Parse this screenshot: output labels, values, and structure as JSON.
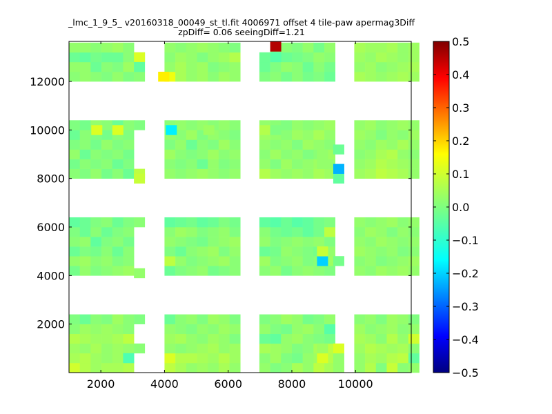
{
  "chart_data": {
    "type": "heatmap",
    "title": "_lmc_1_9_5_ v20160318_00049_st_tl.fit 4006971 offset 4 tile-paw apermag3Diff",
    "subtitle": "zpDiff= 0.06 seeingDiff=1.21",
    "xlabel": "",
    "ylabel": "",
    "xlim": [
      1000,
      11750
    ],
    "ylim": [
      0,
      13650
    ],
    "x_ticks": [
      2000,
      4000,
      6000,
      8000,
      10000
    ],
    "y_ticks": [
      2000,
      4000,
      6000,
      8000,
      10000,
      12000
    ],
    "x_tick_labels": [
      "2000",
      "4000",
      "6000",
      "8000",
      "10000"
    ],
    "y_tick_labels": [
      "2000",
      "4000",
      "6000",
      "8000",
      "10000",
      "12000"
    ],
    "colorbar": {
      "min": -0.5,
      "max": 0.5,
      "ticks": [
        0.5,
        0.4,
        0.3,
        0.2,
        0.1,
        0.0,
        -0.1,
        -0.2,
        -0.3,
        -0.4,
        -0.5
      ],
      "tick_labels": [
        "0.5",
        "0.4",
        "0.3",
        "0.2",
        "0.1",
        "0.0",
        "−0.1",
        "−0.2",
        "−0.3",
        "−0.4",
        "−0.5"
      ],
      "colormap": "jet"
    },
    "cell_size": [
      340,
      400
    ],
    "column_blocks": [
      {
        "x0": 1000,
        "ncols": 7
      },
      {
        "x0": 4000,
        "ncols": 7
      },
      {
        "x0": 6980,
        "ncols": 7
      },
      {
        "x0": 9960,
        "ncols": 6
      }
    ],
    "row_blocks": [
      {
        "y0": 0,
        "nrows": 6
      },
      {
        "y0": 4000,
        "nrows": 6
      },
      {
        "y0": 8000,
        "nrows": 6
      },
      {
        "y0": 12000,
        "nrows": 4
      }
    ],
    "block_values": [
      [
        [
          0.08,
          0.05,
          0.03,
          0.04,
          0.04,
          0.05,
          -0.03
        ],
        [
          0.04,
          0.05,
          0.03,
          0.02,
          0.03,
          0.0,
          0.0
        ],
        [
          0.03,
          0.02,
          0.04,
          0.02,
          0.03,
          0.02,
          0.01
        ],
        [
          0.05,
          0.04,
          0.03,
          0.03,
          0.04,
          0.06,
          0.05
        ],
        [
          0.01,
          0.03,
          0.02,
          0.03,
          0.02,
          0.01,
          -0.02
        ],
        [
          0.0,
          -0.02,
          0.01,
          0.0,
          0.03,
          0.01,
          0.0
        ]
      ],
      [
        [
          0.06,
          0.04,
          0.02,
          0.03,
          0.02,
          0.04,
          0.02
        ],
        [
          0.09,
          0.05,
          0.05,
          0.04,
          0.03,
          0.05,
          0.03
        ],
        [
          0.02,
          0.01,
          0.02,
          0.03,
          0.04,
          0.02,
          0.03
        ],
        [
          0.03,
          0.04,
          0.02,
          0.01,
          0.03,
          0.02,
          0.0
        ],
        [
          0.02,
          0.01,
          0.0,
          0.02,
          0.01,
          0.03,
          0.02
        ],
        [
          -0.02,
          0.01,
          0.02,
          0.0,
          0.03,
          0.02,
          0.0
        ]
      ],
      [
        [
          0.02,
          0.0,
          0.01,
          0.04,
          0.02,
          0.06,
          0.04
        ],
        [
          0.01,
          0.03,
          0.0,
          -0.01,
          0.02,
          0.03,
          0.05
        ],
        [
          0.04,
          0.03,
          0.02,
          0.0,
          0.01,
          0.04,
          0.06
        ],
        [
          -0.02,
          -0.03,
          0.02,
          0.03,
          0.01,
          0.0,
          -0.01
        ],
        [
          0.02,
          0.0,
          -0.01,
          0.02,
          0.03,
          0.01,
          -0.04
        ],
        [
          0.0,
          0.01,
          0.03,
          0.02,
          -0.01,
          0.0,
          0.02
        ]
      ],
      [
        [
          0.02,
          0.05,
          0.0,
          0.07,
          0.01,
          0.02
        ],
        [
          0.02,
          0.04,
          0.03,
          0.05,
          0.06,
          -0.03
        ],
        [
          0.03,
          0.05,
          0.04,
          0.03,
          0.04,
          0.01
        ],
        [
          0.04,
          0.03,
          0.01,
          0.05,
          0.02,
          0.08
        ],
        [
          0.03,
          0.01,
          0.02,
          0.03,
          0.01,
          0.02
        ],
        [
          0.01,
          0.02,
          0.0,
          0.03,
          0.02,
          0.0
        ]
      ],
      [
        [
          -0.01,
          0.02,
          0.0,
          0.01,
          0.02,
          0.03,
          -0.03
        ],
        [
          0.02,
          0.03,
          0.01,
          0.02,
          0.0,
          0.01,
          0.0
        ],
        [
          -0.02,
          0.0,
          -0.01,
          0.01,
          -0.02,
          0.01,
          0.02
        ],
        [
          0.01,
          0.02,
          -0.03,
          0.0,
          0.01,
          -0.01,
          -0.02
        ],
        [
          0.0,
          -0.02,
          0.01,
          -0.02,
          0.0,
          0.01,
          0.02
        ],
        [
          -0.03,
          -0.02,
          0.0,
          0.01,
          -0.02,
          0.0,
          0.01
        ]
      ],
      [
        [
          -0.02,
          0.0,
          0.01,
          0.02,
          -0.01,
          0.0,
          0.01
        ],
        [
          0.06,
          0.02,
          0.0,
          0.01,
          0.02,
          0.03,
          0.01
        ],
        [
          0.0,
          -0.02,
          0.01,
          0.02,
          0.03,
          0.0,
          0.02
        ],
        [
          0.02,
          0.01,
          0.0,
          -0.01,
          0.01,
          0.02,
          0.03
        ],
        [
          0.01,
          0.03,
          0.02,
          0.0,
          0.01,
          0.02,
          0.0
        ],
        [
          -0.03,
          -0.02,
          -0.01,
          -0.03,
          -0.02,
          0.0,
          -0.01
        ]
      ],
      [
        [
          0.01,
          0.02,
          -0.01,
          0.01,
          0.02,
          0.01,
          0.0
        ],
        [
          0.03,
          0.0,
          0.01,
          0.02,
          0.0,
          0.01,
          0.03
        ],
        [
          -0.02,
          -0.01,
          0.02,
          0.01,
          0.0,
          -0.01,
          0.02
        ],
        [
          0.02,
          0.0,
          0.01,
          0.02,
          0.01,
          0.02,
          0.0
        ],
        [
          0.01,
          -0.01,
          -0.02,
          -0.01,
          -0.03,
          -0.01,
          0.06
        ],
        [
          -0.03,
          -0.04,
          -0.02,
          -0.04,
          -0.03,
          -0.01,
          0.0
        ]
      ],
      [
        [
          0.02,
          0.01,
          0.03,
          0.02,
          0.03,
          0.02
        ],
        [
          0.01,
          0.02,
          0.0,
          0.01,
          0.02,
          0.03
        ],
        [
          0.03,
          0.02,
          0.01,
          0.02,
          0.0,
          0.01
        ],
        [
          0.02,
          0.01,
          0.03,
          0.02,
          0.01,
          0.02
        ],
        [
          0.01,
          0.03,
          0.02,
          0.0,
          0.02,
          0.01
        ],
        [
          0.02,
          0.01,
          0.02,
          0.03,
          0.01,
          0.02
        ]
      ],
      [
        [
          0.01,
          0.0,
          0.02,
          -0.01,
          0.01,
          -0.02,
          0.06
        ],
        [
          -0.01,
          0.01,
          0.0,
          0.01,
          -0.02,
          0.0,
          0.02
        ],
        [
          0.02,
          -0.02,
          0.01,
          0.0,
          0.01,
          -0.01,
          0.0
        ],
        [
          0.0,
          0.01,
          -0.01,
          0.02,
          0.0,
          0.01,
          -0.02
        ],
        [
          -0.02,
          0.01,
          0.0,
          -0.01,
          0.01,
          0.0,
          0.01
        ],
        [
          0.0,
          -0.01,
          0.02,
          0.01,
          -0.02,
          0.01,
          0.0
        ]
      ],
      [
        [
          0.02,
          0.01,
          0.02,
          0.03,
          0.02,
          0.01,
          0.02
        ],
        [
          0.01,
          0.0,
          0.01,
          -0.02,
          0.02,
          0.0,
          0.01
        ],
        [
          0.03,
          0.01,
          0.0,
          0.01,
          0.03,
          0.01,
          0.02
        ],
        [
          0.0,
          0.02,
          -0.02,
          0.01,
          0.0,
          0.03,
          0.01
        ],
        [
          0.02,
          0.01,
          0.03,
          0.0,
          0.02,
          0.01,
          0.0
        ],
        [
          0.01,
          0.02,
          0.01,
          0.02,
          0.01,
          0.02,
          0.01
        ]
      ],
      [
        [
          0.05,
          0.03,
          0.02,
          0.03,
          0.02,
          0.04,
          0.03
        ],
        [
          0.02,
          0.0,
          0.03,
          0.01,
          0.02,
          0.03,
          0.02
        ],
        [
          0.01,
          0.03,
          0.01,
          0.02,
          0.0,
          0.01,
          0.03
        ],
        [
          0.02,
          0.01,
          0.02,
          0.0,
          0.03,
          0.02,
          0.01
        ],
        [
          0.03,
          0.02,
          0.01,
          0.03,
          0.02,
          0.04,
          0.02
        ],
        [
          0.02,
          0.01,
          0.0,
          0.02,
          0.01,
          0.02,
          0.03
        ]
      ],
      [
        [
          0.03,
          0.04,
          0.06,
          0.05,
          0.04,
          0.02
        ],
        [
          0.02,
          0.03,
          0.05,
          0.04,
          0.03,
          0.02
        ],
        [
          0.01,
          0.02,
          0.04,
          0.05,
          0.02,
          0.01
        ],
        [
          0.02,
          0.01,
          0.03,
          0.02,
          0.04,
          0.02
        ],
        [
          0.03,
          0.02,
          0.0,
          0.02,
          0.01,
          0.03
        ],
        [
          0.02,
          0.03,
          0.01,
          0.02,
          0.03,
          0.02
        ]
      ],
      [
        [
          0.01,
          0.02,
          0.01,
          0.0,
          0.02,
          0.0,
          0.01
        ],
        [
          0.02,
          0.02,
          -0.02,
          0.01,
          0.0,
          0.03,
          0.02
        ],
        [
          -0.02,
          -0.03,
          -0.01,
          -0.02,
          -0.02,
          0.01,
          -0.03
        ],
        [
          0.02,
          0.02,
          0.01,
          0.02,
          0.03,
          0.01,
          0.03
        ]
      ],
      [
        [
          0.11,
          0.04,
          0.02,
          0.03,
          0.01,
          0.03,
          0.02
        ],
        [
          0.02,
          0.04,
          0.02,
          0.03,
          0.0,
          0.01,
          0.02
        ],
        [
          0.01,
          0.03,
          0.02,
          0.0,
          0.02,
          0.03,
          0.05
        ],
        [
          0.02,
          0.01,
          0.02,
          0.03,
          0.02,
          0.01,
          0.0
        ]
      ],
      [
        [
          0.0,
          0.01,
          -0.01,
          0.01,
          -0.01,
          0.0,
          -0.02
        ],
        [
          -0.02,
          0.0,
          0.02,
          0.01,
          -0.02,
          0.01,
          -0.01
        ],
        [
          -0.02,
          0.0,
          -0.02,
          -0.01,
          0.0,
          0.02,
          0.01
        ],
        [
          -0.02,
          -0.01,
          0.01,
          0.0,
          0.02,
          -0.01,
          0.02
        ]
      ],
      [
        [
          0.04,
          0.03,
          0.02,
          0.03,
          0.04,
          0.03
        ],
        [
          0.02,
          0.03,
          0.01,
          0.02,
          0.03,
          0.04
        ],
        [
          0.03,
          0.02,
          0.04,
          0.03,
          0.02,
          0.03
        ],
        [
          0.04,
          0.03,
          0.03,
          0.04,
          0.02,
          0.03
        ]
      ]
    ],
    "removed_cells": [
      {
        "x": 3040,
        "y": 0
      },
      {
        "x": 3040,
        "y": 400
      },
      {
        "x": 3040,
        "y": 1200
      },
      {
        "x": 3040,
        "y": 1600
      },
      {
        "x": 9060,
        "y": 0
      },
      {
        "x": 9060,
        "y": 400
      },
      {
        "x": 9060,
        "y": 1600
      },
      {
        "x": 9620,
        "y": 0
      },
      {
        "x": 3040,
        "y": 4000
      },
      {
        "x": 3040,
        "y": 4400
      },
      {
        "x": 3040,
        "y": 4800
      },
      {
        "x": 3040,
        "y": 5200
      },
      {
        "x": 3040,
        "y": 5600
      },
      {
        "x": 9060,
        "y": 4000
      },
      {
        "x": 9060,
        "y": 5600
      },
      {
        "x": 9060,
        "y": 8000
      },
      {
        "x": 9060,
        "y": 8400
      },
      {
        "x": 3040,
        "y": 8400
      },
      {
        "x": 3040,
        "y": 8800
      },
      {
        "x": 3040,
        "y": 9200
      },
      {
        "x": 3040,
        "y": 9600
      },
      {
        "x": 9060,
        "y": 9600
      },
      {
        "x": 3040,
        "y": 12400
      },
      {
        "x": 3040,
        "y": 13200
      },
      {
        "x": 6980,
        "y": 13200
      }
    ],
    "extra_cells": [
      {
        "x": 2700,
        "y": 400,
        "value": -0.05
      },
      {
        "x": 9300,
        "y": 0,
        "value": 0.02
      },
      {
        "x": 9300,
        "y": 400,
        "value": 0.02
      },
      {
        "x": 9300,
        "y": 800,
        "value": 0.09
      },
      {
        "x": 8790,
        "y": 400,
        "value": 0.09
      },
      {
        "x": 8790,
        "y": 800,
        "value": 0.03
      },
      {
        "x": 3040,
        "y": 3900,
        "value": 0.02
      },
      {
        "x": 9300,
        "y": 4400,
        "value": -0.01
      },
      {
        "x": 8790,
        "y": 4400,
        "value": -0.17
      },
      {
        "x": 8790,
        "y": 4800,
        "value": 0.07
      },
      {
        "x": 9300,
        "y": 7800,
        "value": -0.03
      },
      {
        "x": 9300,
        "y": 8200,
        "value": -0.2
      },
      {
        "x": 9300,
        "y": 9000,
        "value": -0.02
      },
      {
        "x": 8790,
        "y": 8400,
        "value": 0.02
      },
      {
        "x": 8790,
        "y": 8800,
        "value": 0.02
      },
      {
        "x": 3040,
        "y": 7800,
        "value": 0.07
      },
      {
        "x": 3040,
        "y": 12800,
        "value": 0.09
      },
      {
        "x": 3040,
        "y": 12400,
        "value": -0.03
      },
      {
        "x": 1700,
        "y": 9800,
        "value": 0.09
      },
      {
        "x": 2360,
        "y": 9800,
        "value": 0.09
      },
      {
        "x": 4040,
        "y": 9800,
        "value": -0.14
      },
      {
        "x": 5220,
        "y": 9800,
        "value": 0.03
      },
      {
        "x": 6980,
        "y": 9800,
        "value": 0.05
      },
      {
        "x": 7320,
        "y": 9800,
        "value": 0.0
      },
      {
        "x": 3800,
        "y": 12000,
        "value": 0.14
      },
      {
        "x": 7320,
        "y": 13240,
        "value": 0.45
      },
      {
        "x": 7320,
        "y": 12800,
        "value": -0.04
      }
    ]
  }
}
